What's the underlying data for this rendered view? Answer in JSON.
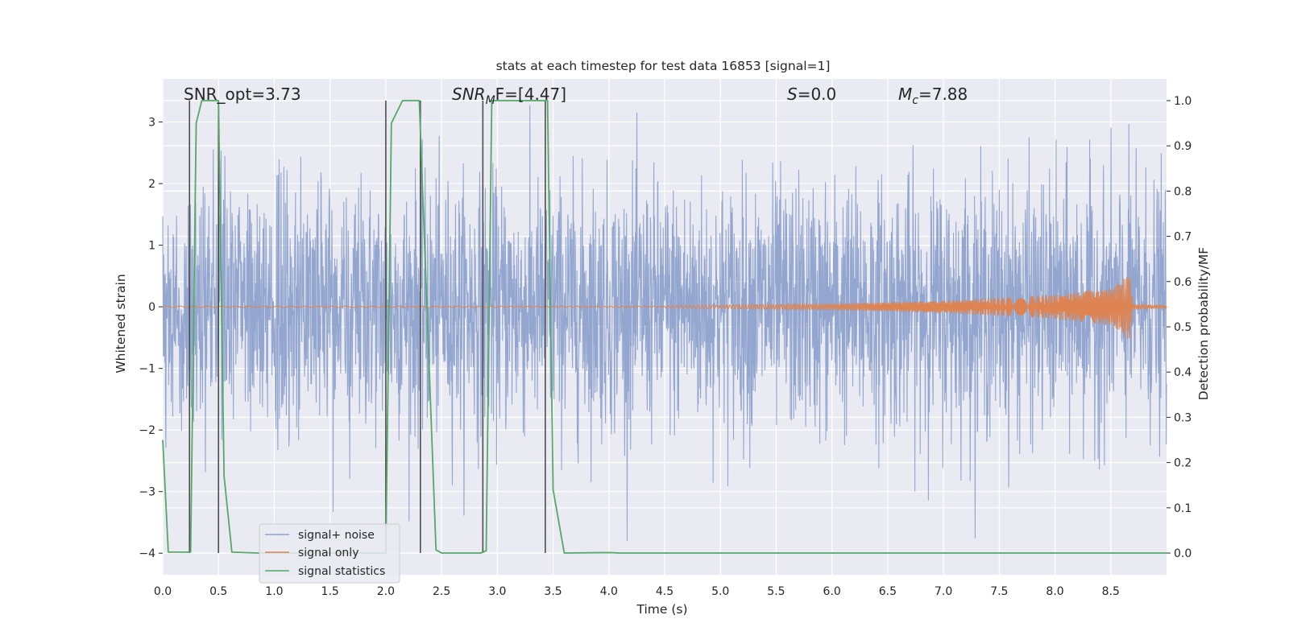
{
  "chart_data": {
    "type": "line",
    "title": "stats at each timestep for test data 16853 [signal=1]",
    "xlabel": "Time (s)",
    "ylabel_left": "Whitened strain",
    "ylabel_right": "Detection probability/MF",
    "xlim": [
      0,
      9
    ],
    "ylim_left": [
      -4.35,
      3.7
    ],
    "ylim_right": [
      -0.048,
      1.048
    ],
    "x_ticks": [
      0.0,
      0.5,
      1.0,
      1.5,
      2.0,
      2.5,
      3.0,
      3.5,
      4.0,
      4.5,
      5.0,
      5.5,
      6.0,
      6.5,
      7.0,
      7.5,
      8.0,
      8.5
    ],
    "x_tick_labels": [
      "0.0",
      "0.5",
      "1.0",
      "1.5",
      "2.0",
      "2.5",
      "3.0",
      "3.5",
      "4.0",
      "4.5",
      "5.0",
      "5.5",
      "6.0",
      "6.5",
      "7.0",
      "7.5",
      "8.0",
      "8.5"
    ],
    "y_left_ticks": [
      3,
      2,
      1,
      0,
      -1,
      -2,
      -3,
      -4
    ],
    "y_left_tick_labels": [
      "3",
      "2",
      "1",
      "0",
      "−1",
      "−2",
      "−3",
      "−4"
    ],
    "y_right_ticks": [
      1.0,
      0.9,
      0.8,
      0.7,
      0.6,
      0.5,
      0.4,
      0.3,
      0.2,
      0.1,
      0.0
    ],
    "y_right_tick_labels": [
      "1.0",
      "0.9",
      "0.8",
      "0.7",
      "0.6",
      "0.5",
      "0.4",
      "0.3",
      "0.2",
      "0.1",
      "0.0"
    ],
    "annotations": {
      "snr_opt": "SNR_opt=3.73",
      "snr_mf_prefix": "SNR",
      "snr_mf_sub": "M",
      "snr_mf_rest": "F=[4.47]",
      "s_var": "S",
      "s_rest": "=0.0",
      "mc_var": "M",
      "mc_sub": "c",
      "mc_rest": "=7.88"
    },
    "legend": {
      "position": "lower-left",
      "entries": [
        {
          "label": "signal+ noise",
          "color": "#8ea2cc"
        },
        {
          "label": "signal only",
          "color": "#dd8452"
        },
        {
          "label": "signal statistics",
          "color": "#55a868"
        }
      ]
    },
    "series": [
      {
        "name": "signal+ noise",
        "axis": "left",
        "description": "whitened strain, approx. Gaussian noise, std ~1, extremes roughly -3.8 to 3.3",
        "x_range": [
          0,
          9
        ],
        "amplitude_std": 1.0
      },
      {
        "name": "signal only",
        "axis": "left",
        "description": "chirp waveform growing toward merger",
        "amplitude_points": [
          [
            4.5,
            0.02
          ],
          [
            6.0,
            0.05
          ],
          [
            7.0,
            0.1
          ],
          [
            8.0,
            0.2
          ],
          [
            8.5,
            0.3
          ],
          [
            8.67,
            0.55
          ],
          [
            8.7,
            0.04
          ],
          [
            9.0,
            0.02
          ]
        ]
      },
      {
        "name": "signal statistics",
        "axis": "right",
        "x": [
          0.0,
          0.05,
          0.25,
          0.3,
          0.35,
          0.5,
          0.55,
          0.62,
          0.85,
          2.0,
          2.05,
          2.15,
          2.3,
          2.45,
          2.5,
          2.85,
          2.9,
          2.95,
          3.45,
          3.5,
          3.6,
          4.0,
          4.1,
          9.0
        ],
        "values": [
          0.25,
          0.002,
          0.002,
          0.95,
          1.0,
          1.0,
          0.17,
          0.002,
          0.0,
          0.0,
          0.95,
          1.0,
          1.0,
          0.007,
          0.0,
          0.0,
          0.005,
          1.0,
          1.0,
          0.14,
          0.0,
          0.001,
          0.0,
          0.0
        ]
      }
    ],
    "vertical_lines": {
      "color": "#4d4d4d",
      "x": [
        0.24,
        0.5,
        2.0,
        2.31,
        2.87,
        3.43
      ],
      "y_top_right": 1.0,
      "y_bottom_right": 0.0
    },
    "colors": {
      "axes_bg": "#eaeaf2",
      "grid": "#ffffff",
      "noise": "#8ea2cc",
      "signal": "#dd8452",
      "stats": "#55a868",
      "vlines": "#4d4d4d"
    }
  }
}
